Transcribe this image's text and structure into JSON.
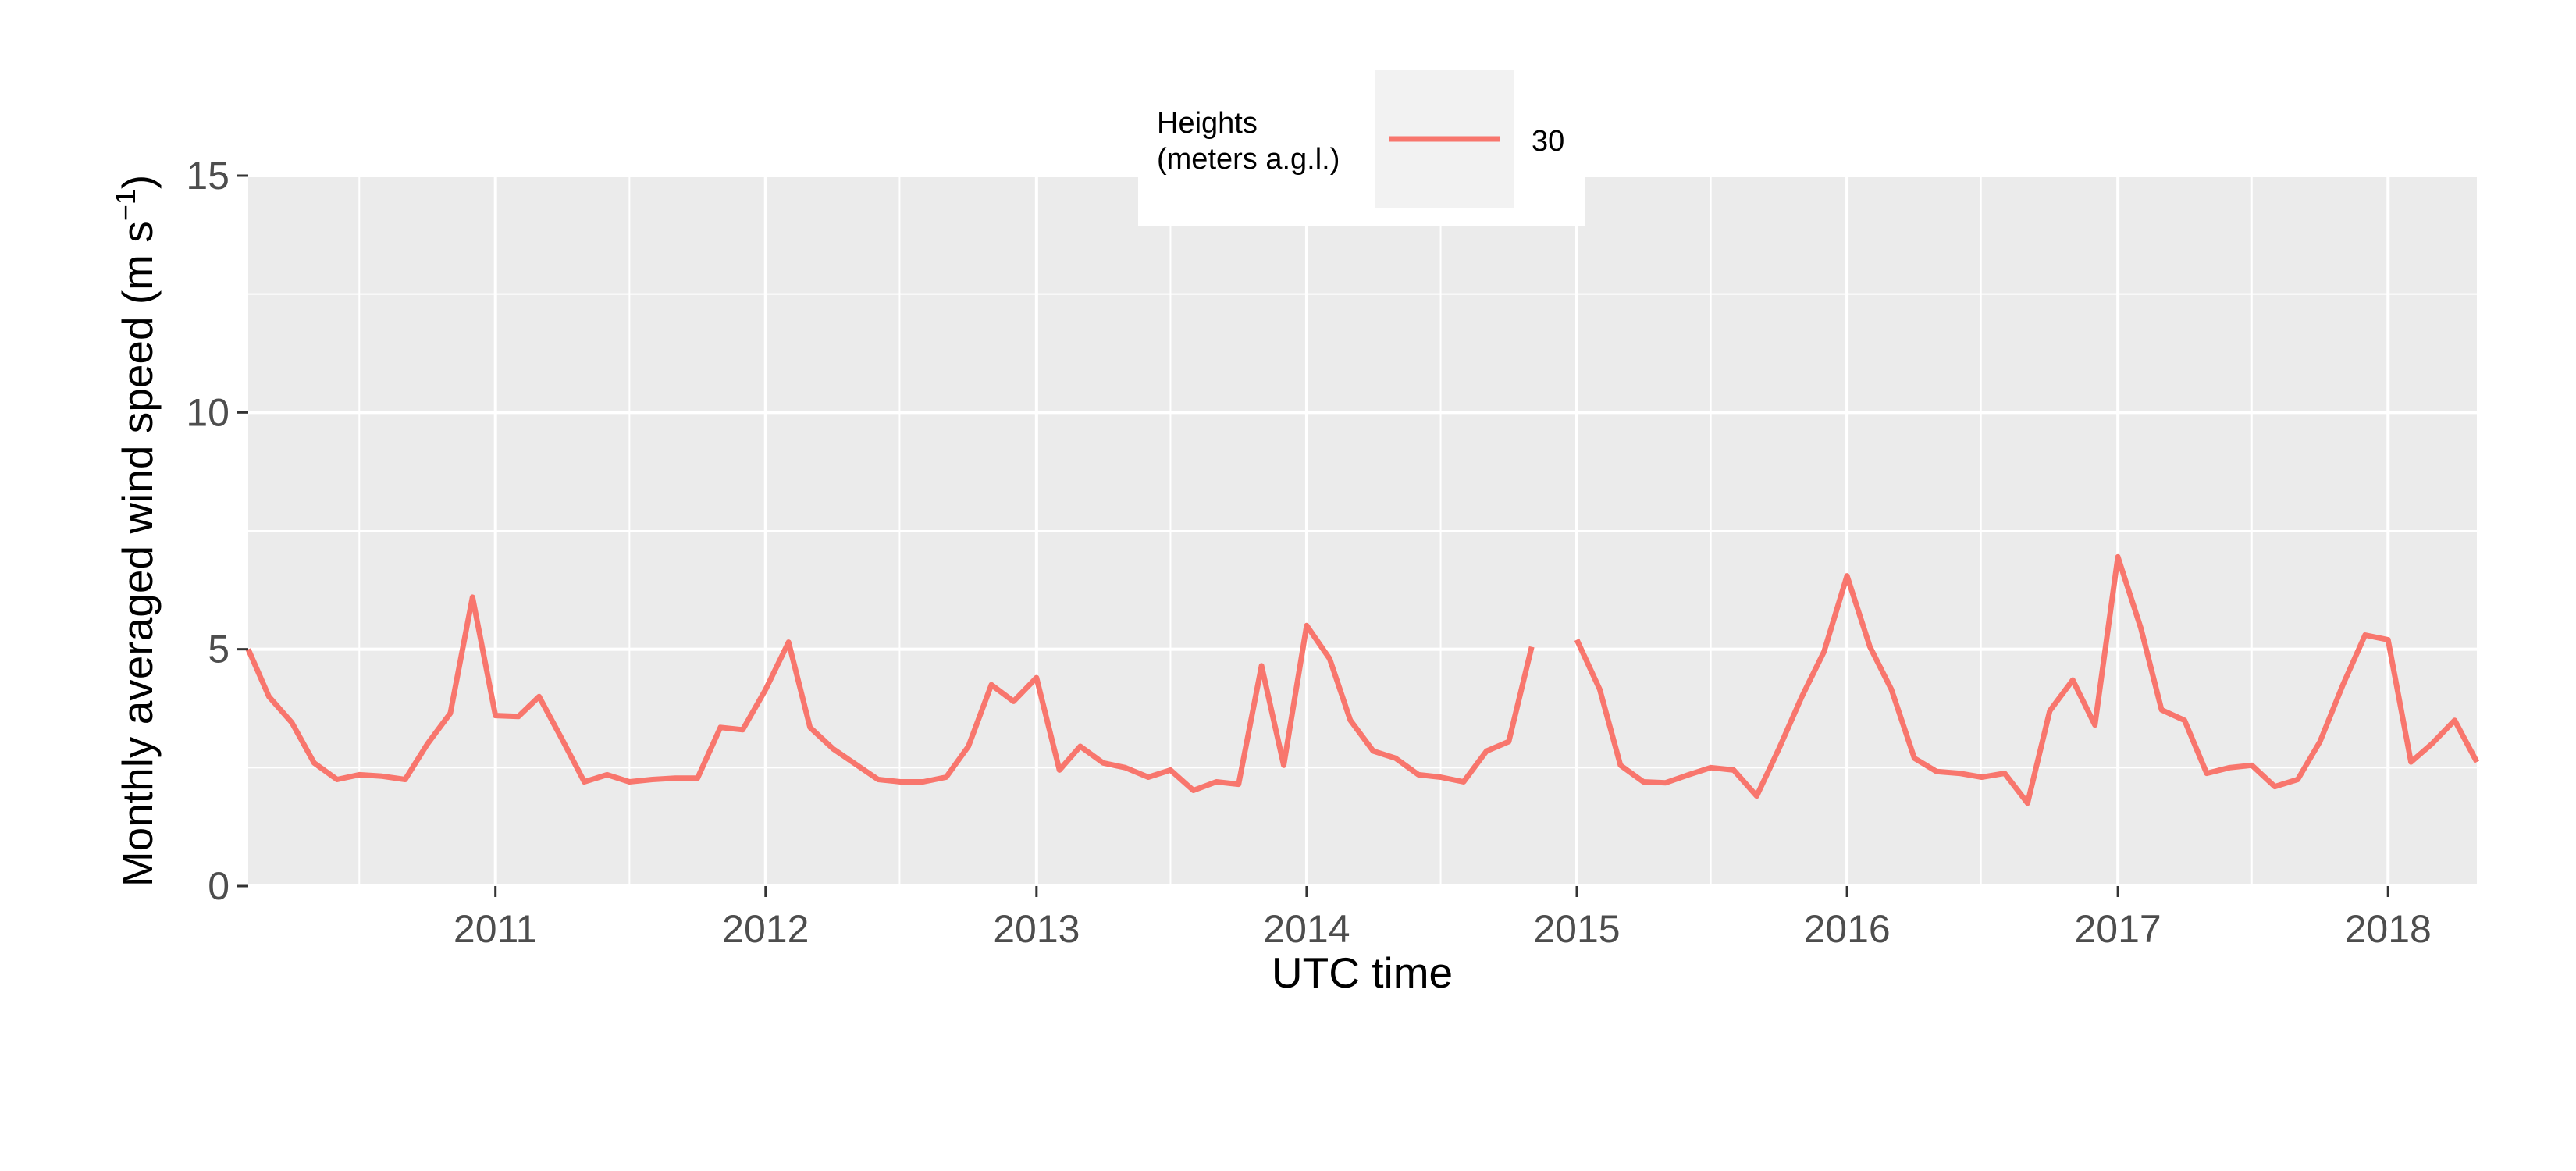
{
  "chart_data": {
    "type": "line",
    "xlabel": "UTC time",
    "ylabel": "Monthly averaged wind speed (m s",
    "ylabel_superscript": "−1",
    "ylabel_close": ")",
    "xlim": [
      "2010-02-01",
      "2018-05-01"
    ],
    "ylim": [
      0,
      15
    ],
    "yticks": [
      0,
      5,
      10,
      15
    ],
    "xticks": [
      "2011",
      "2012",
      "2013",
      "2014",
      "2015",
      "2016",
      "2017",
      "2018"
    ],
    "grid": true,
    "legend": {
      "title_line1": "Heights",
      "title_line2": "(meters a.g.l.)",
      "placement": "top",
      "entries": [
        "30"
      ]
    },
    "colors": {
      "series": "#f8766d",
      "panel": "#ebebeb",
      "grid": "#ffffff",
      "legend_key": "#f2f2f2"
    },
    "series": [
      {
        "name": "30",
        "segments": [
          {
            "x": [
              "2010-02",
              "2010-03",
              "2010-04",
              "2010-05",
              "2010-06",
              "2010-07",
              "2010-08",
              "2010-09",
              "2010-10",
              "2010-11",
              "2010-12",
              "2011-01",
              "2011-02",
              "2011-03",
              "2011-04",
              "2011-05",
              "2011-06",
              "2011-07",
              "2011-08",
              "2011-09",
              "2011-10",
              "2011-11",
              "2011-12",
              "2012-01",
              "2012-02",
              "2012-03",
              "2012-04",
              "2012-05",
              "2012-06",
              "2012-07",
              "2012-08",
              "2012-09",
              "2012-10",
              "2012-11",
              "2012-12",
              "2013-01",
              "2013-02",
              "2013-03",
              "2013-04",
              "2013-05",
              "2013-06",
              "2013-07",
              "2013-08",
              "2013-09",
              "2013-10",
              "2013-11",
              "2013-12",
              "2014-01",
              "2014-02",
              "2014-03",
              "2014-04",
              "2014-05",
              "2014-06",
              "2014-07",
              "2014-08",
              "2014-09",
              "2014-10",
              "2014-11"
            ],
            "y": [
              5.0,
              4.0,
              3.45,
              2.6,
              2.25,
              2.35,
              2.32,
              2.25,
              3.0,
              3.65,
              6.1,
              3.6,
              3.58,
              4.0,
              3.1,
              2.2,
              2.35,
              2.2,
              2.25,
              2.28,
              2.28,
              3.35,
              3.3,
              4.15,
              5.15,
              3.35,
              2.9,
              2.58,
              2.25,
              2.2,
              2.2,
              2.3,
              2.95,
              4.25,
              3.9,
              4.4,
              2.45,
              2.95,
              2.6,
              2.5,
              2.3,
              2.45,
              2.02,
              2.2,
              2.15,
              4.65,
              2.55,
              5.5,
              4.8,
              3.5,
              2.85,
              2.7,
              2.35,
              2.3,
              2.2,
              2.85,
              3.05,
              5.05
            ]
          },
          {
            "x": [
              "2015-01",
              "2015-02",
              "2015-03",
              "2015-04",
              "2015-05",
              "2015-06",
              "2015-07",
              "2015-08",
              "2015-09",
              "2015-10",
              "2015-11",
              "2015-12",
              "2016-01",
              "2016-02",
              "2016-03",
              "2016-04",
              "2016-05",
              "2016-06",
              "2016-07",
              "2016-08",
              "2016-09",
              "2016-10",
              "2016-11",
              "2016-12",
              "2017-01",
              "2017-02",
              "2017-03",
              "2017-04",
              "2017-05",
              "2017-06",
              "2017-07",
              "2017-08",
              "2017-09",
              "2017-10",
              "2017-11",
              "2017-12",
              "2018-01",
              "2018-02",
              "2018-03",
              "2018-04",
              "2018-05"
            ],
            "y": [
              5.2,
              4.15,
              2.55,
              2.2,
              2.18,
              2.35,
              2.5,
              2.45,
              1.9,
              2.9,
              4.0,
              4.95,
              6.55,
              5.05,
              4.15,
              2.7,
              2.42,
              2.38,
              2.3,
              2.38,
              1.75,
              3.7,
              4.35,
              3.4,
              6.95,
              5.45,
              3.72,
              3.5,
              2.38,
              2.5,
              2.55,
              2.1,
              2.25,
              3.05,
              4.25,
              5.3,
              5.2,
              2.62,
              3.0,
              3.5,
              2.62
            ]
          }
        ]
      }
    ]
  }
}
